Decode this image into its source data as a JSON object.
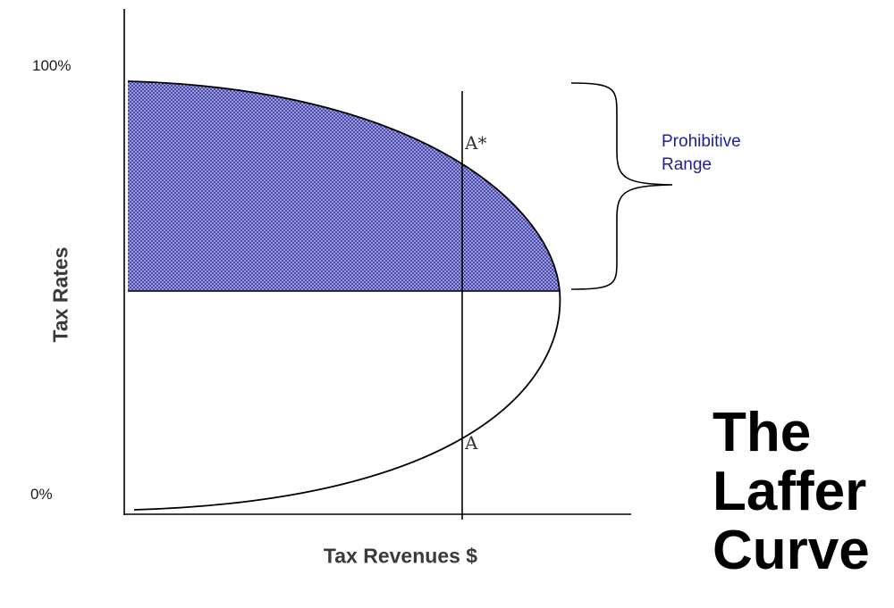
{
  "title_lines": [
    "The",
    "Laffer",
    "Curve"
  ],
  "y_axis": {
    "label": "Tax Rates",
    "top_label": "100%",
    "bottom_label": "0%"
  },
  "x_axis": {
    "label": "Tax Revenues $"
  },
  "points": {
    "upper": "A*",
    "lower": "A"
  },
  "range_label": [
    "Prohibitive",
    "Range"
  ],
  "colors": {
    "shade_fill": "#9999dd",
    "shade_pattern": "#2a2a99",
    "range_text": "#1f1f8f",
    "axis": "#000000"
  }
}
